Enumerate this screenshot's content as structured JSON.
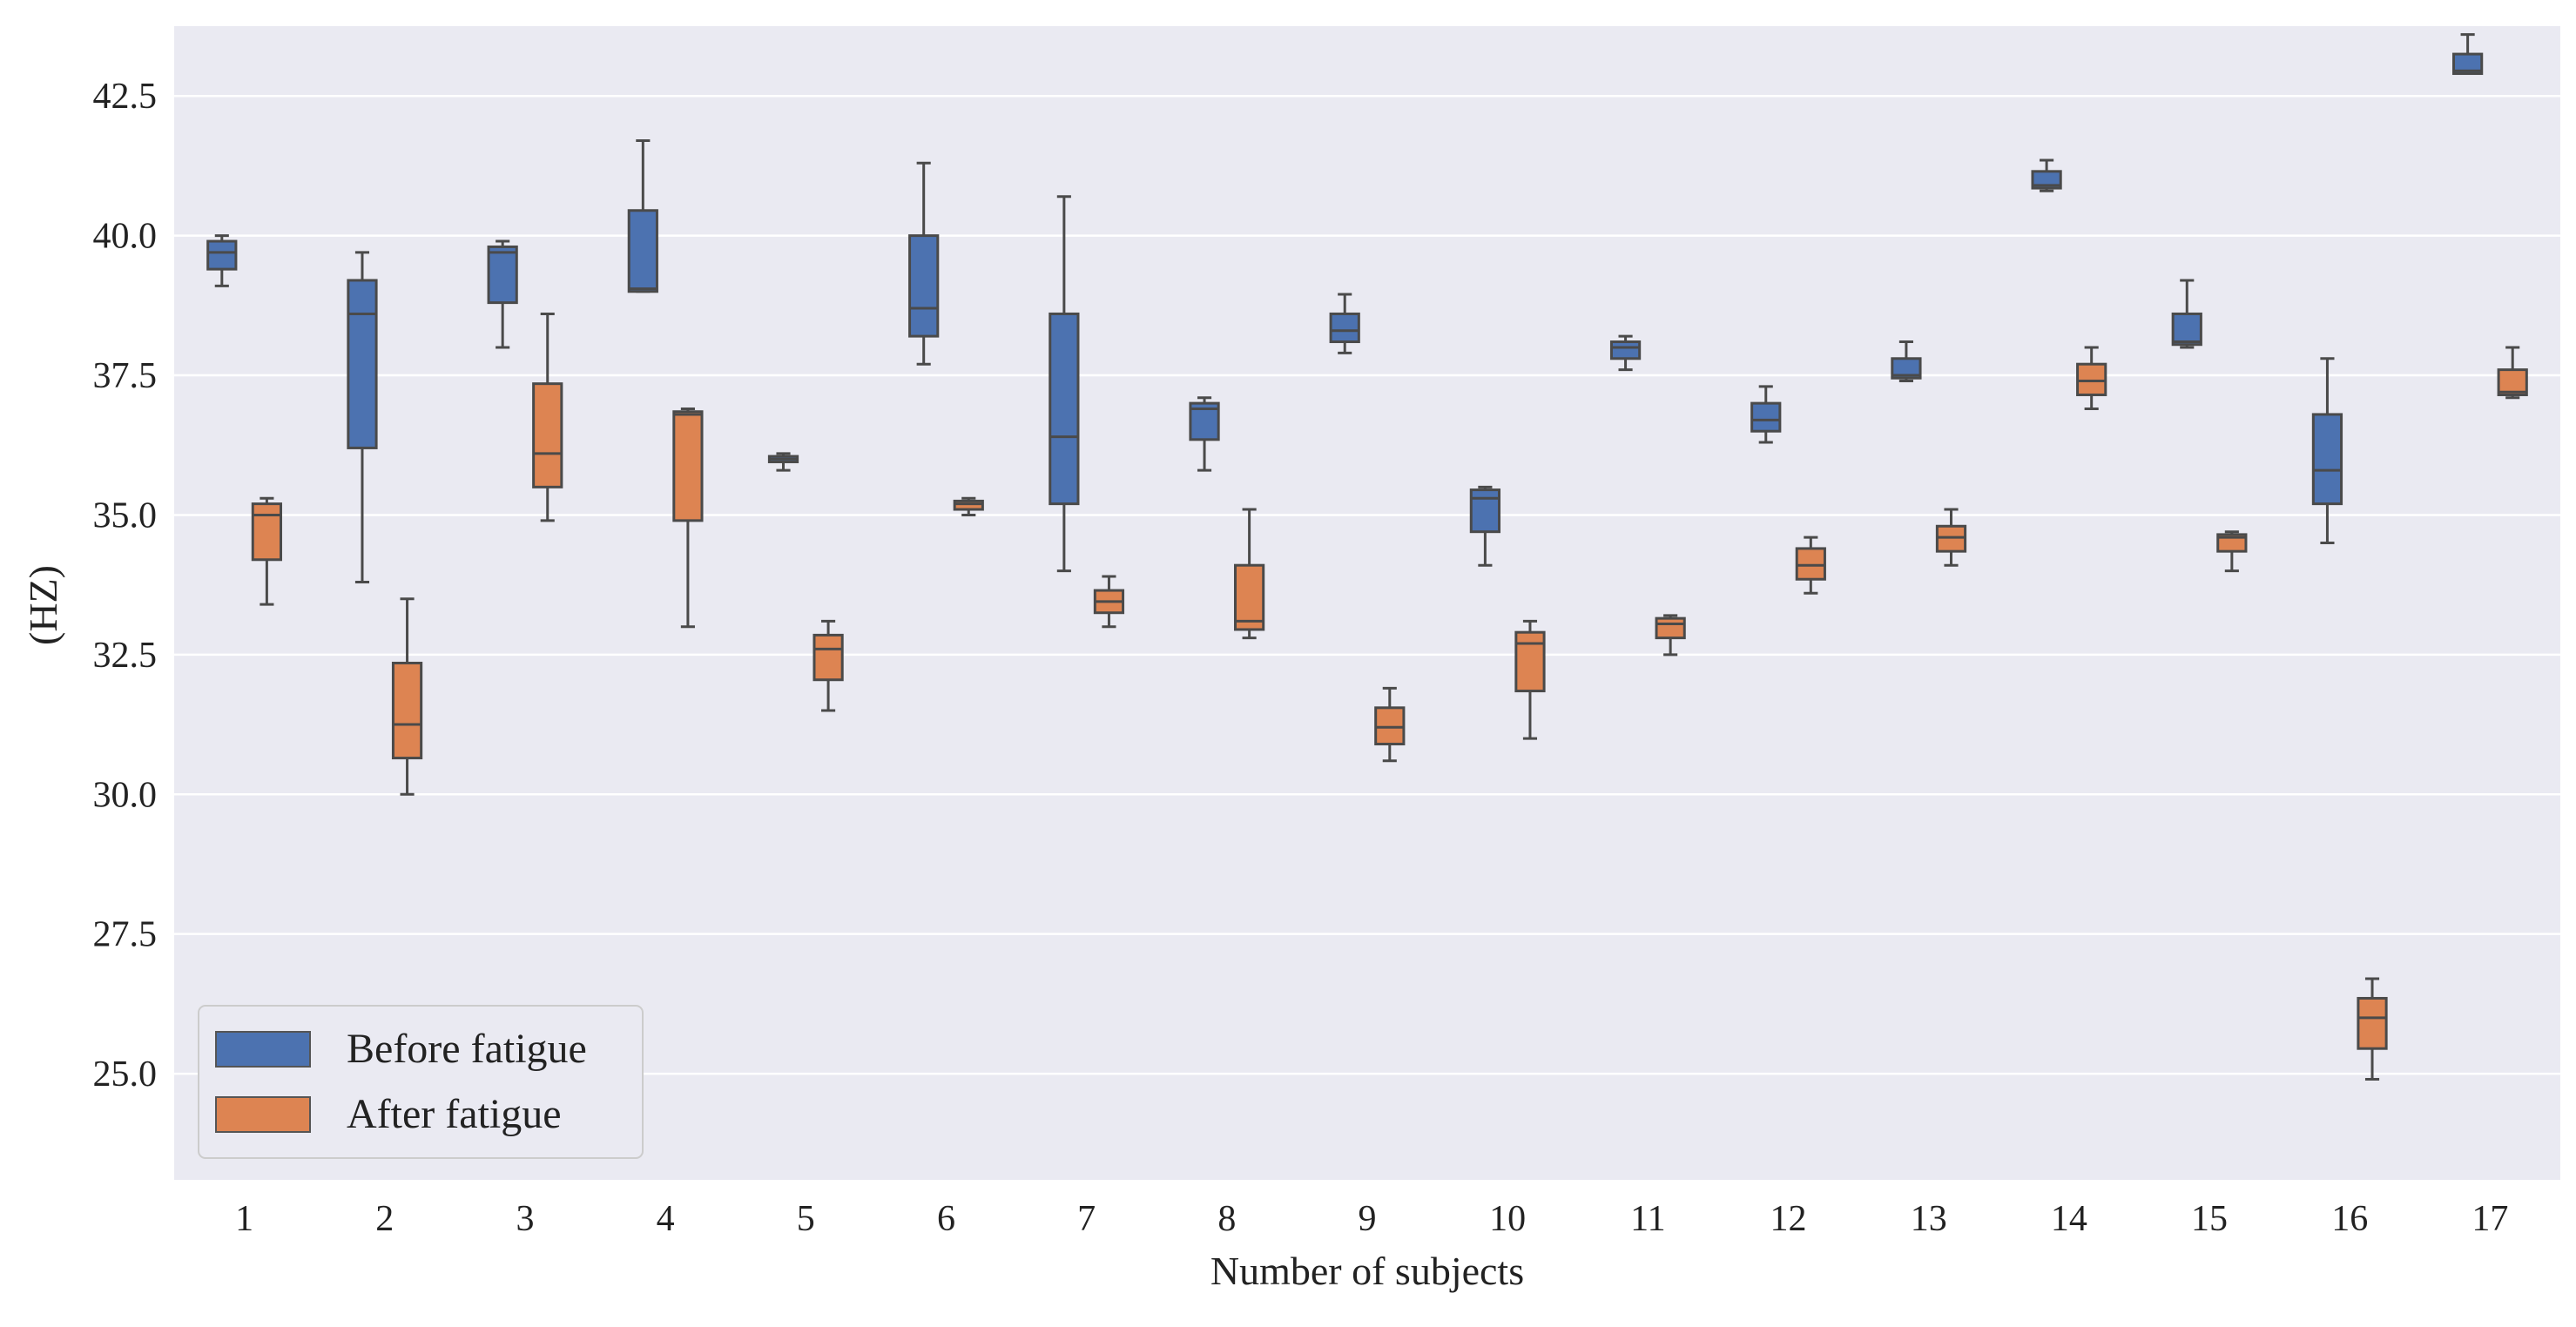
{
  "chart_data": {
    "type": "box",
    "title": "",
    "xlabel": "Number of subjects",
    "ylabel": "(HZ)",
    "ylim": [
      23.1,
      43.75
    ],
    "yticks": [
      25.0,
      27.5,
      30.0,
      32.5,
      35.0,
      37.5,
      40.0,
      42.5
    ],
    "ytick_labels": [
      "25.0",
      "27.5",
      "30.0",
      "32.5",
      "35.0",
      "37.5",
      "40.0",
      "42.5"
    ],
    "grid": true,
    "legend_position": "bottom-left",
    "categories": [
      "1",
      "2",
      "3",
      "4",
      "5",
      "6",
      "7",
      "8",
      "9",
      "10",
      "11",
      "12",
      "13",
      "14",
      "15",
      "16",
      "17"
    ],
    "series": [
      {
        "name": "Before fatigue",
        "color": "#4c72b0",
        "boxes": [
          {
            "min": 39.1,
            "q1": 39.4,
            "median": 39.7,
            "q3": 39.9,
            "max": 40.0
          },
          {
            "min": 33.8,
            "q1": 36.2,
            "median": 38.6,
            "q3": 39.2,
            "max": 39.7
          },
          {
            "min": 38.0,
            "q1": 38.8,
            "median": 39.7,
            "q3": 39.8,
            "max": 39.9
          },
          {
            "min": 39.0,
            "q1": 39.0,
            "median": 39.05,
            "q3": 40.45,
            "max": 41.7
          },
          {
            "min": 35.8,
            "q1": 35.95,
            "median": 36.0,
            "q3": 36.05,
            "max": 36.1
          },
          {
            "min": 37.7,
            "q1": 38.2,
            "median": 38.7,
            "q3": 40.0,
            "max": 41.3
          },
          {
            "min": 34.0,
            "q1": 35.2,
            "median": 36.4,
            "q3": 38.6,
            "max": 40.7
          },
          {
            "min": 35.8,
            "q1": 36.35,
            "median": 36.9,
            "q3": 37.0,
            "max": 37.1
          },
          {
            "min": 37.9,
            "q1": 38.1,
            "median": 38.3,
            "q3": 38.6,
            "max": 38.95
          },
          {
            "min": 34.1,
            "q1": 34.7,
            "median": 35.3,
            "q3": 35.45,
            "max": 35.5
          },
          {
            "min": 37.6,
            "q1": 37.8,
            "median": 38.0,
            "q3": 38.1,
            "max": 38.2
          },
          {
            "min": 36.3,
            "q1": 36.5,
            "median": 36.7,
            "q3": 37.0,
            "max": 37.3
          },
          {
            "min": 37.4,
            "q1": 37.45,
            "median": 37.5,
            "q3": 37.8,
            "max": 38.1
          },
          {
            "min": 40.8,
            "q1": 40.85,
            "median": 40.9,
            "q3": 41.15,
            "max": 41.35
          },
          {
            "min": 38.0,
            "q1": 38.05,
            "median": 38.1,
            "q3": 38.6,
            "max": 39.2
          },
          {
            "min": 34.5,
            "q1": 35.2,
            "median": 35.8,
            "q3": 36.8,
            "max": 37.8
          },
          {
            "min": 42.9,
            "q1": 42.9,
            "median": 42.95,
            "q3": 43.25,
            "max": 43.6
          }
        ]
      },
      {
        "name": "After fatigue",
        "color": "#dd8452",
        "boxes": [
          {
            "min": 33.4,
            "q1": 34.2,
            "median": 35.0,
            "q3": 35.2,
            "max": 35.3
          },
          {
            "min": 30.0,
            "q1": 30.65,
            "median": 31.25,
            "q3": 32.35,
            "max": 33.5
          },
          {
            "min": 34.9,
            "q1": 35.5,
            "median": 36.1,
            "q3": 37.35,
            "max": 38.6
          },
          {
            "min": 33.0,
            "q1": 34.9,
            "median": 36.8,
            "q3": 36.85,
            "max": 36.9
          },
          {
            "min": 31.5,
            "q1": 32.05,
            "median": 32.6,
            "q3": 32.85,
            "max": 33.1
          },
          {
            "min": 35.0,
            "q1": 35.1,
            "median": 35.2,
            "q3": 35.25,
            "max": 35.3
          },
          {
            "min": 33.0,
            "q1": 33.25,
            "median": 33.45,
            "q3": 33.65,
            "max": 33.9
          },
          {
            "min": 32.8,
            "q1": 32.95,
            "median": 33.1,
            "q3": 34.1,
            "max": 35.1
          },
          {
            "min": 30.6,
            "q1": 30.9,
            "median": 31.2,
            "q3": 31.55,
            "max": 31.9
          },
          {
            "min": 31.0,
            "q1": 31.85,
            "median": 32.7,
            "q3": 32.9,
            "max": 33.1
          },
          {
            "min": 32.5,
            "q1": 32.8,
            "median": 33.05,
            "q3": 33.15,
            "max": 33.2
          },
          {
            "min": 33.6,
            "q1": 33.85,
            "median": 34.1,
            "q3": 34.4,
            "max": 34.6
          },
          {
            "min": 34.1,
            "q1": 34.35,
            "median": 34.6,
            "q3": 34.8,
            "max": 35.1
          },
          {
            "min": 36.9,
            "q1": 37.15,
            "median": 37.4,
            "q3": 37.7,
            "max": 38.0
          },
          {
            "min": 34.0,
            "q1": 34.35,
            "median": 34.6,
            "q3": 34.65,
            "max": 34.7
          },
          {
            "min": 24.9,
            "q1": 25.45,
            "median": 26.0,
            "q3": 26.35,
            "max": 26.7
          },
          {
            "min": 37.1,
            "q1": 37.15,
            "median": 37.2,
            "q3": 37.6,
            "max": 38.0
          }
        ]
      }
    ]
  }
}
